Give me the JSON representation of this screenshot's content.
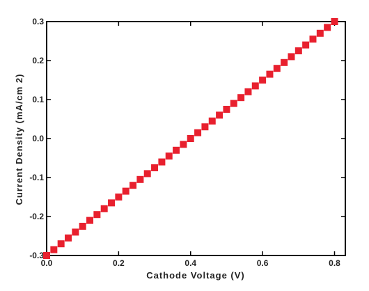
{
  "chart_data": {
    "type": "scatter",
    "title": "",
    "xlabel": "Cathode Voltage (V)",
    "ylabel": "Current Density (mA/cm 2)",
    "xlim": [
      0.0,
      0.83
    ],
    "ylim": [
      -0.3,
      0.3
    ],
    "xticks": [
      0.0,
      0.2,
      0.4,
      0.6,
      0.8
    ],
    "xtick_labels": [
      "0.0",
      "0.2",
      "0.4",
      "0.6",
      "0.8"
    ],
    "yticks": [
      -0.3,
      -0.2,
      -0.1,
      0.0,
      0.1,
      0.2,
      0.3
    ],
    "ytick_labels": [
      "-0.3",
      "-0.2",
      "-0.1",
      "0.0",
      "0.1",
      "0.2",
      "0.3"
    ],
    "grid": false,
    "marker": "square",
    "marker_color": "#e8202e",
    "series": [
      {
        "x": [
          0.0,
          0.02,
          0.04,
          0.06,
          0.08,
          0.1,
          0.12,
          0.14,
          0.16,
          0.18,
          0.2,
          0.22,
          0.24,
          0.26,
          0.28,
          0.3,
          0.32,
          0.34,
          0.36,
          0.38,
          0.4,
          0.42,
          0.44,
          0.46,
          0.48,
          0.5,
          0.52,
          0.54,
          0.56,
          0.58,
          0.6,
          0.62,
          0.64,
          0.66,
          0.68,
          0.7,
          0.72,
          0.74,
          0.76,
          0.78,
          0.8
        ],
        "y": [
          -0.3,
          -0.285,
          -0.27,
          -0.255,
          -0.24,
          -0.225,
          -0.21,
          -0.195,
          -0.18,
          -0.165,
          -0.15,
          -0.135,
          -0.12,
          -0.105,
          -0.09,
          -0.075,
          -0.06,
          -0.045,
          -0.03,
          -0.015,
          0.0,
          0.015,
          0.03,
          0.045,
          0.06,
          0.075,
          0.09,
          0.105,
          0.12,
          0.135,
          0.15,
          0.165,
          0.18,
          0.195,
          0.21,
          0.225,
          0.24,
          0.255,
          0.27,
          0.285,
          0.3
        ]
      }
    ]
  }
}
